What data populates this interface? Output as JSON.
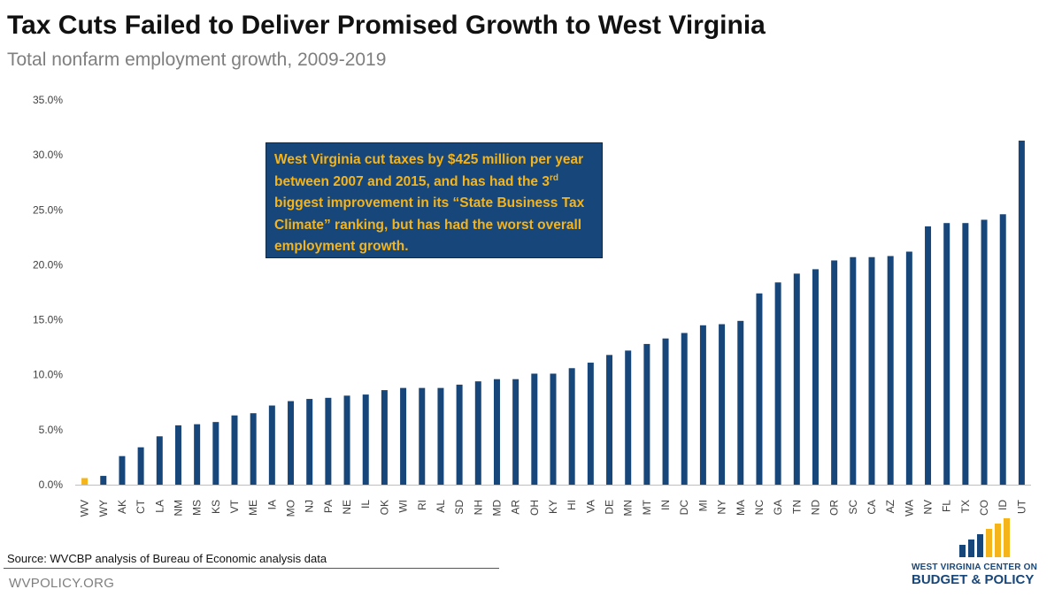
{
  "chart_data": {
    "type": "bar",
    "title": "Tax Cuts Failed to Deliver Promised Growth to West Virginia",
    "subtitle": "Total nonfarm employment growth, 2009-2019",
    "categories": [
      "WV",
      "WY",
      "AK",
      "CT",
      "LA",
      "NM",
      "MS",
      "KS",
      "VT",
      "ME",
      "IA",
      "MO",
      "NJ",
      "PA",
      "NE",
      "IL",
      "OK",
      "WI",
      "RI",
      "AL",
      "SD",
      "NH",
      "MD",
      "AR",
      "OH",
      "KY",
      "HI",
      "VA",
      "DE",
      "MN",
      "MT",
      "IN",
      "DC",
      "MI",
      "NY",
      "MA",
      "NC",
      "GA",
      "TN",
      "ND",
      "OR",
      "SC",
      "CA",
      "AZ",
      "WA",
      "NV",
      "FL",
      "TX",
      "CO",
      "ID",
      "UT"
    ],
    "values": [
      0.6,
      0.8,
      2.6,
      3.4,
      4.4,
      5.4,
      5.5,
      5.7,
      6.3,
      6.5,
      7.2,
      7.6,
      7.8,
      7.9,
      8.1,
      8.2,
      8.6,
      8.8,
      8.8,
      8.8,
      9.1,
      9.4,
      9.6,
      9.6,
      10.1,
      10.1,
      10.6,
      11.1,
      11.8,
      12.2,
      12.8,
      13.3,
      13.8,
      14.5,
      14.6,
      14.9,
      17.4,
      18.4,
      19.2,
      19.6,
      20.4,
      20.7,
      20.7,
      20.8,
      21.2,
      23.5,
      23.8,
      23.8,
      24.1,
      24.6,
      31.3
    ],
    "highlight": "WV",
    "ylim": [
      0,
      35
    ],
    "yticks": [
      "0.0%",
      "5.0%",
      "10.0%",
      "15.0%",
      "20.0%",
      "25.0%",
      "30.0%",
      "35.0%"
    ],
    "grid": false,
    "legend": false,
    "xlabel": "",
    "ylabel": "",
    "colors": {
      "bar": "#17467a",
      "highlight": "#f4b41a"
    }
  },
  "annotation": {
    "part1": "West Virginia cut taxes by $425 million per year between 2007 and 2015, and has had the 3",
    "superscript": "rd",
    "part2": " biggest improvement in its “State Business Tax Climate” ranking, but has had the worst overall employment growth."
  },
  "footer": {
    "source": "Source:  WVCBP analysis of Bureau of Economic analysis data",
    "site": "WVPOLICY.ORG"
  },
  "logo": {
    "line1": "WEST VIRGINIA CENTER ON",
    "line2": "BUDGET & POLICY"
  }
}
